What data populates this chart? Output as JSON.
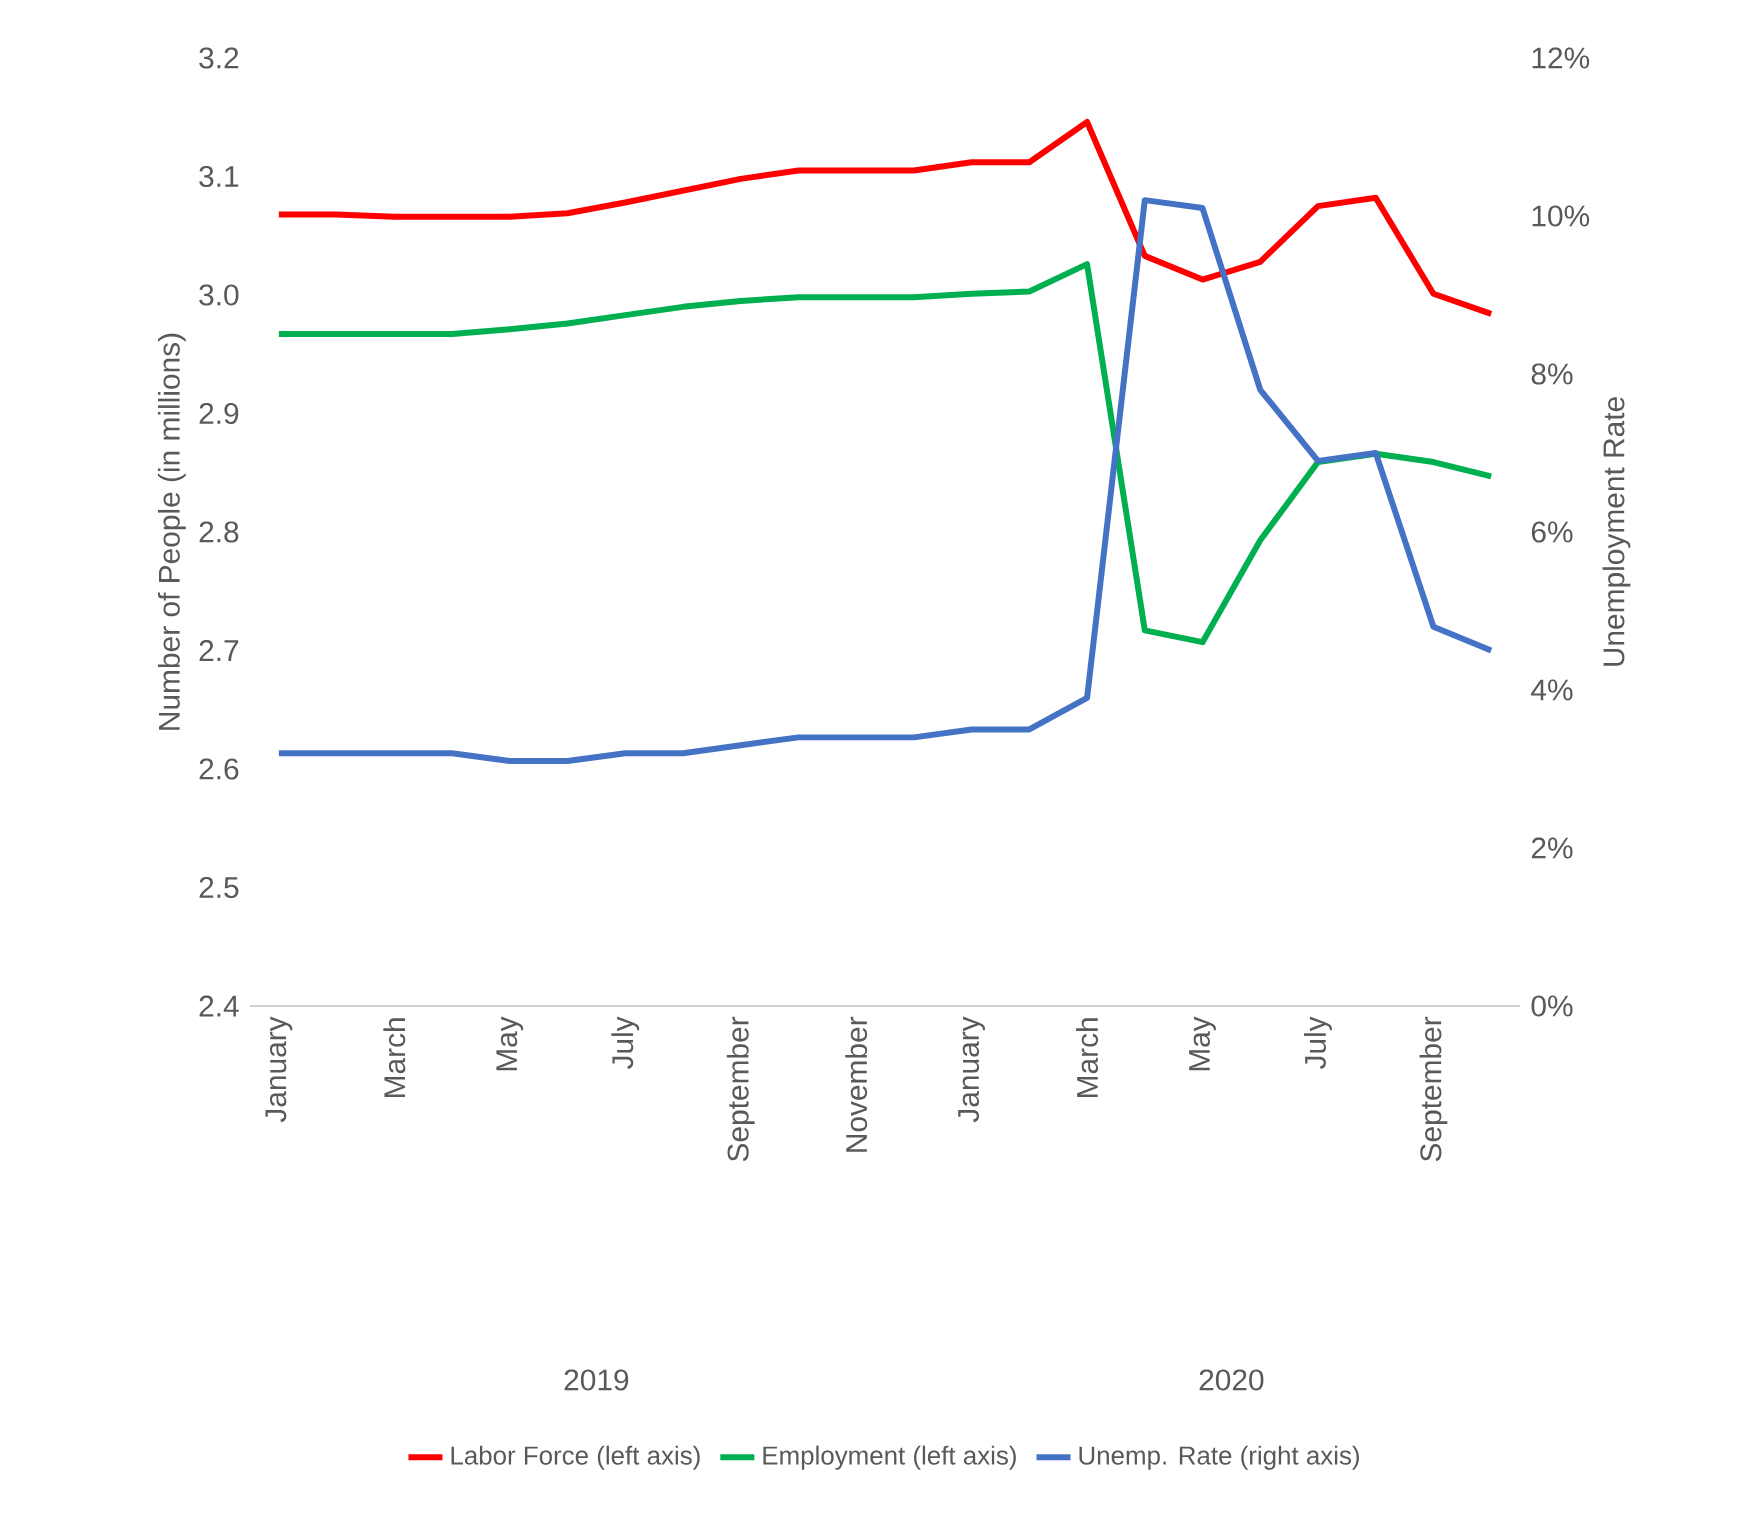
{
  "chart_data": {
    "type": "line",
    "ylabel": "Number of People (in millions)",
    "y2label": "Unemployment Rate",
    "categories": [
      "January",
      null,
      "March",
      null,
      "May",
      null,
      "July",
      null,
      "September",
      null,
      "November",
      null,
      "January",
      null,
      "March",
      null,
      "May",
      null,
      "July",
      null,
      "September",
      null
    ],
    "annotations": [
      "2019",
      "2020"
    ],
    "series": [
      {
        "name": "Labor Force (left axis)",
        "color": "#ff0000",
        "values": [
          3.068,
          3.068,
          3.066,
          3.066,
          3.066,
          3.069,
          3.078,
          3.088,
          3.098,
          3.105,
          3.105,
          3.105,
          3.112,
          3.112,
          3.146,
          3.033,
          3.013,
          3.028,
          3.075,
          3.082,
          3.001,
          2.984
        ]
      },
      {
        "name": "Employment (left axis)",
        "color": "#00b050",
        "values": [
          2.967,
          2.967,
          2.967,
          2.967,
          2.971,
          2.976,
          2.983,
          2.99,
          2.995,
          2.998,
          2.998,
          2.998,
          3.001,
          3.003,
          3.026,
          2.717,
          2.707,
          2.793,
          2.859,
          2.866,
          2.859,
          2.847
        ]
      },
      {
        "name": "Unemp. Rate (right axis)",
        "color": "#4472c4",
        "axis": "y2",
        "values": [
          3.2,
          3.2,
          3.2,
          3.2,
          3.1,
          3.1,
          3.2,
          3.2,
          3.3,
          3.4,
          3.4,
          3.4,
          3.5,
          3.5,
          3.9,
          10.2,
          10.1,
          7.8,
          6.9,
          7.0,
          4.8,
          4.5
        ]
      }
    ],
    "ylim": [
      2.4,
      3.2
    ],
    "yticks": [
      2.4,
      2.5,
      2.6,
      2.7,
      2.8,
      2.9,
      {
        "value": 3,
        "label": "3.0"
      },
      3.1,
      3.2
    ],
    "y2lim": [
      0,
      12
    ],
    "y2ticks": [
      {
        "value": 0,
        "label": "0%"
      },
      {
        "value": 2,
        "label": "2%"
      },
      {
        "value": 4,
        "label": "4%"
      },
      {
        "value": 6,
        "label": "6%"
      },
      {
        "value": 8,
        "label": "8%"
      },
      {
        "value": 10,
        "label": "10%"
      },
      {
        "value": 12,
        "label": "12%"
      }
    ],
    "grid": false,
    "legend": "bottom"
  }
}
